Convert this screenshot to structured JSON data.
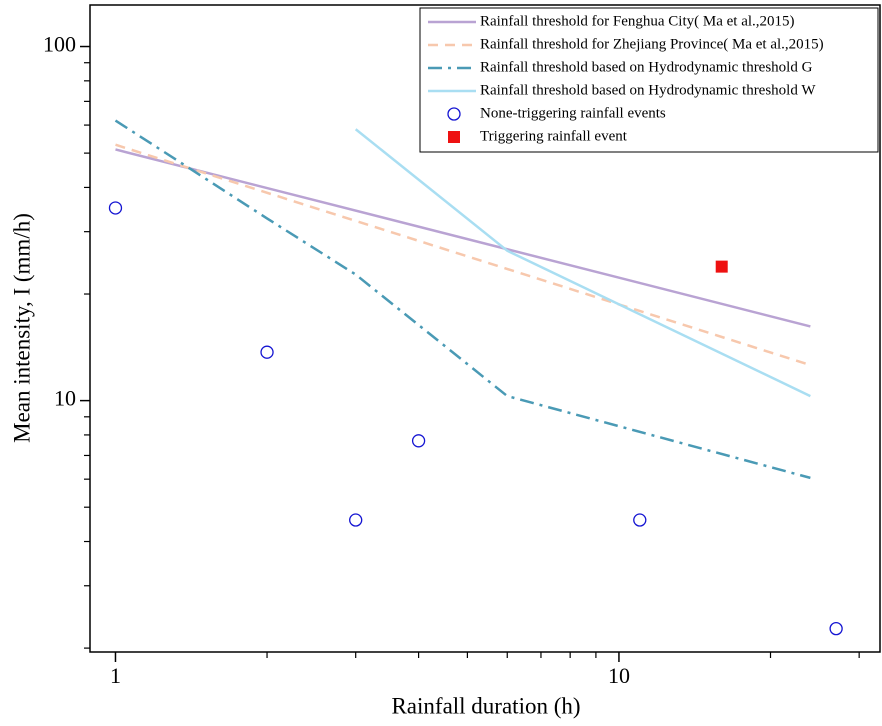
{
  "chart_data": {
    "type": "line",
    "xlabel": "Rainfall duration (h)",
    "ylabel": "Mean intensity, I (mm/h)",
    "xscale": "log",
    "yscale": "log",
    "xlim": [
      0.89,
      33
    ],
    "ylim": [
      1.95,
      131
    ],
    "xticks": [
      1,
      10
    ],
    "yticks": [
      10,
      100
    ],
    "xminor": [
      2,
      3,
      4,
      5,
      6,
      7,
      8,
      9,
      20,
      30
    ],
    "yminor": [
      2,
      3,
      4,
      5,
      6,
      7,
      8,
      9,
      20,
      30,
      40,
      50,
      60,
      70,
      80,
      90
    ],
    "legend": "upper right",
    "series": [
      {
        "name": "Rainfall threshold for Fenghua City( Ma et al.,2015)",
        "color": "#b9a3d3",
        "dash": "solid",
        "x": [
          1,
          24
        ],
        "values": [
          51.2,
          16.2
        ]
      },
      {
        "name": "Rainfall threshold for Zhejiang Province( Ma et al.,2015)",
        "color": "#f7c8ad",
        "dash": "dashed",
        "x": [
          1,
          24
        ],
        "values": [
          52.8,
          12.6
        ]
      },
      {
        "name": "Rainfall threshold based on Hydrodynamic threshold G",
        "color": "#4a9ab5",
        "dash": "dashdot",
        "x": [
          1,
          2,
          3,
          6,
          24
        ],
        "values": [
          61.8,
          32.7,
          22.7,
          10.3,
          6.05
        ]
      },
      {
        "name": "Rainfall threshold based on Hydrodynamic threshold W",
        "color": "#a9def2",
        "dash": "solid",
        "x": [
          3,
          6,
          24
        ],
        "values": [
          58.4,
          26.5,
          10.3
        ]
      },
      {
        "name": "None-triggering rainfall events",
        "color": "#1414d2",
        "marker": "circle",
        "x": [
          1,
          2,
          3,
          4,
          11,
          27
        ],
        "values": [
          35,
          13.7,
          4.6,
          7.7,
          4.6,
          2.27
        ]
      },
      {
        "name": "Triggering rainfall event",
        "color": "#ee1111",
        "marker": "square",
        "x": [
          16
        ],
        "values": [
          23.9
        ]
      }
    ]
  }
}
